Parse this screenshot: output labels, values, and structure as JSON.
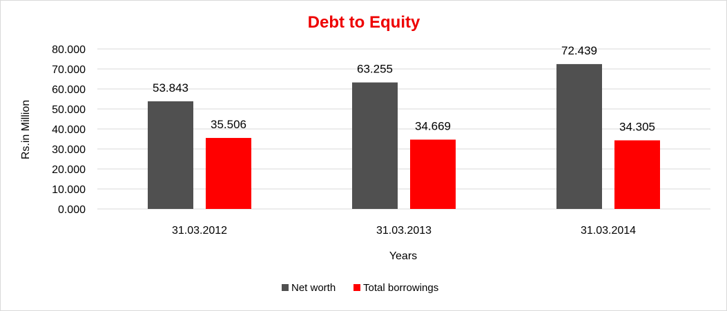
{
  "chart_data": {
    "type": "bar",
    "title": "Debt to Equity",
    "xlabel": "Years",
    "ylabel": "Rs.in Million",
    "categories": [
      "31.03.2012",
      "31.03.2013",
      "31.03.2014"
    ],
    "series": [
      {
        "name": "Net worth",
        "values": [
          53.843,
          63.255,
          72.439
        ],
        "labels": [
          "53.843",
          "63.255",
          "72.439"
        ],
        "color": "#505050"
      },
      {
        "name": "Total borrowings",
        "values": [
          35.506,
          34.669,
          34.305
        ],
        "labels": [
          "35.506",
          "34.669",
          "34.305"
        ],
        "color": "#ff0000"
      }
    ],
    "ylim": [
      0,
      80
    ],
    "yticks": [
      0,
      10,
      20,
      30,
      40,
      50,
      60,
      70,
      80
    ],
    "ytick_labels": [
      "0.000",
      "10.000",
      "20.000",
      "30.000",
      "40.000",
      "50.000",
      "60.000",
      "70.000",
      "80.000"
    ],
    "grid": true,
    "legend_position": "bottom",
    "title_color": "#ee0000",
    "gridline_color": "#d9d9d9"
  }
}
